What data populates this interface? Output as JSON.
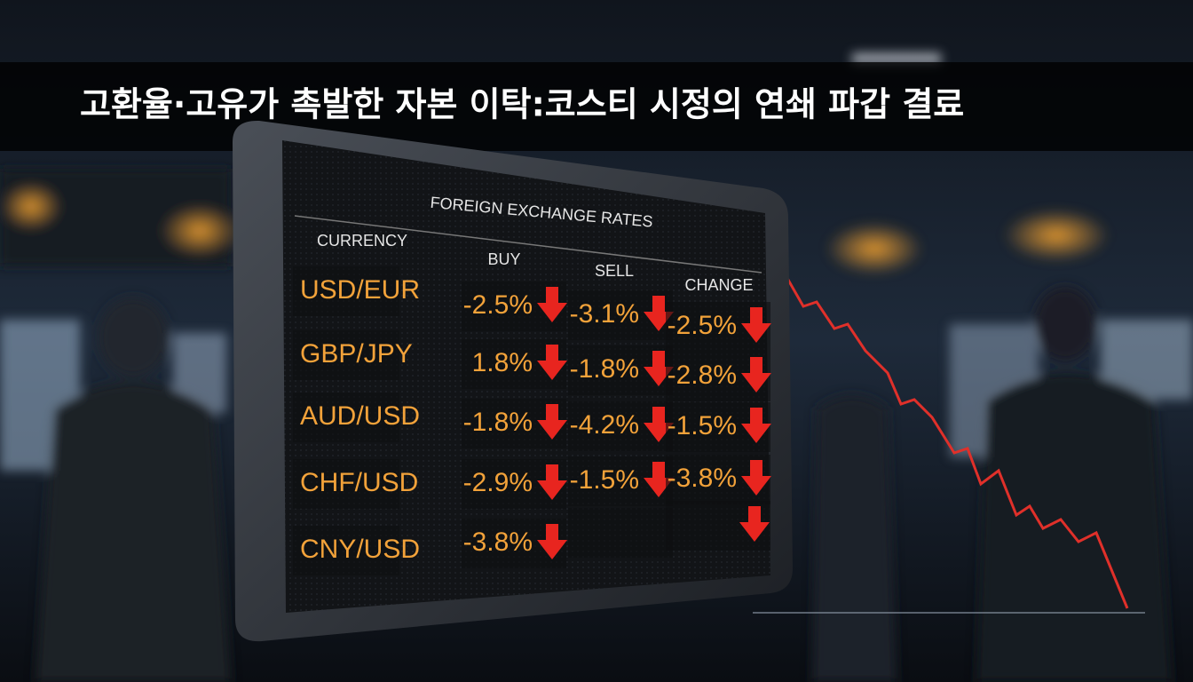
{
  "headline": "고환율·고유가 촉발한 자본 이탁:코스티 시정의 연쇄 파갑 결료",
  "board": {
    "title": "FOREIGN EXCHANGE RATES",
    "headers": {
      "currency": "CURRENCY",
      "buy": "BUY",
      "sell": "SELL",
      "change": "CHANGE"
    },
    "rows": [
      {
        "currency": "USD/EUR",
        "buy": "-2.5%",
        "sell": "-3.1%",
        "change": "-2.5%"
      },
      {
        "currency": "GBP/JPY",
        "buy": "1.8%",
        "sell": "-1.8%",
        "change": "-2.8%"
      },
      {
        "currency": "AUD/USD",
        "buy": "-1.8%",
        "sell": "-4.2%",
        "change": "-1.5%"
      },
      {
        "currency": "CHF/USD",
        "buy": "-2.9%",
        "sell": "-1.5%",
        "change": "-3.8%"
      },
      {
        "currency": "CNY/USD",
        "buy": "-3.8%"
      }
    ]
  }
}
